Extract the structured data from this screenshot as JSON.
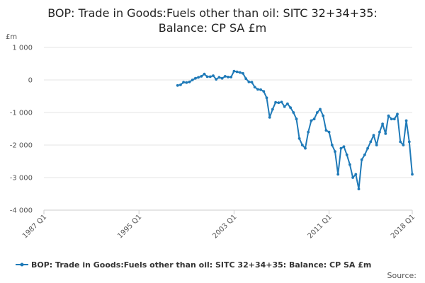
{
  "chart_data": {
    "type": "line",
    "title_lines": [
      "BOP: Trade in Goods:Fuels other than oil: SITC 32+34+35:",
      "Balance: CP SA £m"
    ],
    "y_unit": "£m",
    "ylim": [
      -4000,
      1000
    ],
    "y_ticks": [
      {
        "value": 1000,
        "label": "1 000"
      },
      {
        "value": 0,
        "label": "0"
      },
      {
        "value": -1000,
        "label": "-1 000"
      },
      {
        "value": -2000,
        "label": "-2 000"
      },
      {
        "value": -3000,
        "label": "-3 000"
      },
      {
        "value": -4000,
        "label": "-4 000"
      }
    ],
    "xlim": [
      1987.0,
      2018.0
    ],
    "x_ticks": [
      {
        "value": 1987.0,
        "label": "1987 Q1"
      },
      {
        "value": 1995.0,
        "label": "1995 Q1"
      },
      {
        "value": 2003.0,
        "label": "2003 Q1"
      },
      {
        "value": 2011.0,
        "label": "2011 Q1"
      },
      {
        "value": 2018.0,
        "label": "2018 Q1"
      }
    ],
    "grid": true,
    "legend_position": "bottom",
    "series": [
      {
        "name": "BOP: Trade in Goods:Fuels other than oil: SITC 32+34+35: Balance: CP SA £m",
        "color": "#1f7ab8",
        "x": [
          1998.25,
          1998.5,
          1998.75,
          1999.0,
          1999.25,
          1999.5,
          1999.75,
          2000.0,
          2000.25,
          2000.5,
          2000.75,
          2001.0,
          2001.25,
          2001.5,
          2001.75,
          2002.0,
          2002.25,
          2002.5,
          2002.75,
          2003.0,
          2003.25,
          2003.5,
          2003.75,
          2004.0,
          2004.25,
          2004.5,
          2004.75,
          2005.0,
          2005.25,
          2005.5,
          2005.75,
          2006.0,
          2006.25,
          2006.5,
          2006.75,
          2007.0,
          2007.25,
          2007.5,
          2007.75,
          2008.0,
          2008.25,
          2008.5,
          2008.75,
          2009.0,
          2009.25,
          2009.5,
          2009.75,
          2010.0,
          2010.25,
          2010.5,
          2010.75,
          2011.0,
          2011.25,
          2011.5,
          2011.75,
          2012.0,
          2012.25,
          2012.5,
          2012.75,
          2013.0,
          2013.25,
          2013.5,
          2013.75,
          2014.0,
          2014.25,
          2014.5,
          2014.75,
          2015.0,
          2015.25,
          2015.5,
          2015.75,
          2016.0,
          2016.25,
          2016.5,
          2016.75,
          2017.0,
          2017.25,
          2017.5,
          2017.75,
          2018.0
        ],
        "values": [
          -170,
          -150,
          -70,
          -80,
          -60,
          0,
          50,
          80,
          110,
          180,
          100,
          100,
          130,
          20,
          80,
          50,
          110,
          90,
          90,
          270,
          250,
          230,
          200,
          40,
          -60,
          -70,
          -220,
          -290,
          -300,
          -350,
          -550,
          -1150,
          -900,
          -690,
          -700,
          -680,
          -820,
          -730,
          -850,
          -1000,
          -1200,
          -1800,
          -2000,
          -2100,
          -1600,
          -1250,
          -1200,
          -1000,
          -900,
          -1100,
          -1550,
          -1600,
          -2000,
          -2200,
          -2900,
          -2100,
          -2050,
          -2300,
          -2600,
          -3000,
          -2900,
          -3350,
          -2450,
          -2300,
          -2100,
          -1900,
          -1700,
          -2000,
          -1600,
          -1350,
          -1650,
          -1100,
          -1200,
          -1200,
          -1050,
          -1900,
          -2000,
          -1250,
          -1900,
          -2900
        ]
      }
    ],
    "source_label": "Source:"
  }
}
